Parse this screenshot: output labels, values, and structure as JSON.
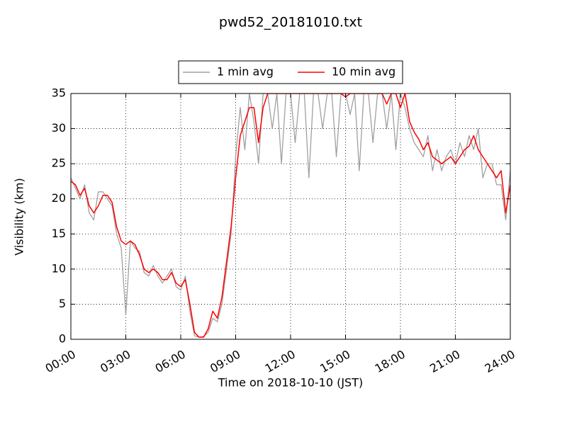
{
  "chart_data": {
    "type": "line",
    "title": "pwd52_20181010.txt",
    "x_label": "Time on 2018-10-10 (JST)",
    "y_label": "Visibility (km)",
    "x": [
      0,
      0.25,
      0.5,
      0.75,
      1,
      1.25,
      1.5,
      1.75,
      2,
      2.25,
      2.5,
      2.75,
      3,
      3.25,
      3.5,
      3.75,
      4,
      4.25,
      4.5,
      4.75,
      5,
      5.25,
      5.5,
      5.75,
      6,
      6.25,
      6.5,
      6.75,
      7,
      7.25,
      7.5,
      7.75,
      8,
      8.25,
      8.5,
      8.75,
      9,
      9.25,
      9.5,
      9.75,
      10,
      10.25,
      10.5,
      10.75,
      11,
      11.25,
      11.5,
      11.75,
      12,
      12.25,
      12.5,
      12.75,
      13,
      13.25,
      13.5,
      13.75,
      14,
      14.25,
      14.5,
      14.75,
      15,
      15.25,
      15.5,
      15.75,
      16,
      16.25,
      16.5,
      16.75,
      17,
      17.25,
      17.5,
      17.75,
      18,
      18.25,
      18.5,
      18.75,
      19,
      19.25,
      19.5,
      19.75,
      20,
      20.25,
      20.5,
      20.75,
      21,
      21.25,
      21.5,
      21.75,
      22,
      22.25,
      22.5,
      22.75,
      23,
      23.25,
      23.5,
      23.75,
      24
    ],
    "series": [
      {
        "name": "1 min avg",
        "color": "#a0a0a0",
        "values": [
          23,
          21.5,
          20,
          22,
          18,
          17,
          21,
          21,
          20,
          19,
          15,
          13,
          3.5,
          14,
          13,
          12.5,
          9.5,
          9,
          10.5,
          9,
          8,
          9,
          10,
          7.5,
          7,
          9,
          4,
          0.5,
          0.3,
          0.4,
          1,
          3,
          2.5,
          5,
          10,
          15,
          26,
          33,
          27,
          35,
          31,
          25,
          35,
          35,
          30,
          35,
          25,
          35,
          35,
          28,
          35,
          35,
          23,
          35,
          35,
          30,
          35,
          35,
          26,
          35,
          35,
          32,
          35,
          24,
          35,
          35,
          28,
          35,
          35,
          30,
          35,
          27,
          35,
          33,
          30,
          28,
          27,
          26,
          29,
          24,
          27,
          24,
          26,
          27,
          25,
          28,
          26,
          29,
          27,
          30,
          23,
          25,
          25,
          22,
          22,
          17,
          24
        ]
      },
      {
        "name": "10 min avg",
        "color": "#ff0000",
        "values": [
          22.5,
          22,
          20.5,
          21.5,
          19,
          18,
          19,
          20.5,
          20.5,
          19.5,
          16,
          14,
          13.5,
          14,
          13.5,
          12,
          10,
          9.5,
          10,
          9.5,
          8.5,
          8.5,
          9.5,
          8,
          7.5,
          8.5,
          5,
          1,
          0.3,
          0.3,
          1.5,
          4,
          3,
          6,
          11,
          16,
          23,
          29,
          31,
          33,
          33,
          28,
          33,
          35,
          35,
          35,
          35,
          35,
          35,
          35,
          35,
          35,
          35,
          35,
          35,
          35,
          35,
          35,
          35,
          35,
          34.5,
          35,
          35,
          35,
          35,
          35,
          35,
          35,
          35,
          33.5,
          35,
          35,
          33,
          35,
          31,
          29.5,
          28.5,
          27,
          28,
          26,
          25.5,
          25,
          25.5,
          26,
          25,
          26,
          27,
          27.5,
          29,
          27,
          26,
          25,
          24,
          23,
          24,
          18,
          22
        ]
      }
    ],
    "xlim": [
      0,
      24
    ],
    "xticks": [
      {
        "value": 0,
        "label": "00:00"
      },
      {
        "value": 3,
        "label": "03:00"
      },
      {
        "value": 6,
        "label": "06:00"
      },
      {
        "value": 9,
        "label": "09:00"
      },
      {
        "value": 12,
        "label": "12:00"
      },
      {
        "value": 15,
        "label": "15:00"
      },
      {
        "value": 18,
        "label": "18:00"
      },
      {
        "value": 21,
        "label": "21:00"
      },
      {
        "value": 24,
        "label": "24:00"
      }
    ],
    "ylim": [
      0,
      35
    ],
    "yticks": [
      0,
      5,
      10,
      15,
      20,
      25,
      30,
      35
    ],
    "grid": true,
    "legend": "top"
  }
}
